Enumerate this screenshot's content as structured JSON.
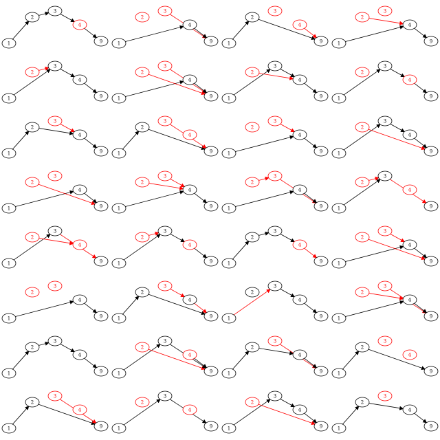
{
  "colors": {
    "normal": "#000000",
    "highlight": "#ff0000",
    "background": "#ffffff"
  },
  "node_labels": {
    "a": "1",
    "b": "2",
    "c": "3",
    "d": "4",
    "e": "9"
  },
  "panels": [
    {
      "red_nodes": [
        "d"
      ],
      "edges": [
        [
          "a",
          "b",
          "n"
        ],
        [
          "b",
          "c",
          "n"
        ],
        [
          "c",
          "d",
          "n"
        ],
        [
          "d",
          "e",
          "n"
        ]
      ]
    },
    {
      "red_nodes": [
        "b",
        "c"
      ],
      "edges": [
        [
          "a",
          "d",
          "n"
        ],
        [
          "c",
          "e",
          "r"
        ],
        [
          "d",
          "e",
          "n"
        ]
      ]
    },
    {
      "red_nodes": [
        "c",
        "d"
      ],
      "edges": [
        [
          "a",
          "b",
          "n"
        ],
        [
          "b",
          "e",
          "n"
        ],
        [
          "d",
          "e",
          "r"
        ]
      ]
    },
    {
      "red_nodes": [
        "b",
        "c"
      ],
      "edges": [
        [
          "a",
          "d",
          "n"
        ],
        [
          "b",
          "d",
          "r"
        ],
        [
          "d",
          "e",
          "n"
        ]
      ]
    },
    {
      "red_nodes": [
        "b"
      ],
      "edges": [
        [
          "a",
          "c",
          "n"
        ],
        [
          "b",
          "c",
          "r"
        ],
        [
          "c",
          "d",
          "n"
        ],
        [
          "d",
          "e",
          "n"
        ]
      ]
    },
    {
      "red_nodes": [
        "b",
        "c"
      ],
      "edges": [
        [
          "a",
          "d",
          "n"
        ],
        [
          "b",
          "e",
          "r"
        ],
        [
          "c",
          "e",
          "r"
        ],
        [
          "d",
          "e",
          "n"
        ]
      ]
    },
    {
      "red_nodes": [
        "b"
      ],
      "edges": [
        [
          "a",
          "c",
          "n"
        ],
        [
          "b",
          "d",
          "r"
        ],
        [
          "c",
          "d",
          "n"
        ],
        [
          "d",
          "e",
          "n"
        ]
      ]
    },
    {
      "red_nodes": [
        "b",
        "d"
      ],
      "edges": [
        [
          "a",
          "c",
          "n"
        ],
        [
          "c",
          "d",
          "n"
        ],
        [
          "d",
          "e",
          "n"
        ]
      ]
    },
    {
      "red_nodes": [
        "c"
      ],
      "edges": [
        [
          "a",
          "b",
          "n"
        ],
        [
          "b",
          "d",
          "n"
        ],
        [
          "c",
          "d",
          "r"
        ],
        [
          "d",
          "e",
          "n"
        ]
      ]
    },
    {
      "red_nodes": [
        "c",
        "d"
      ],
      "edges": [
        [
          "a",
          "b",
          "n"
        ],
        [
          "b",
          "e",
          "n"
        ],
        [
          "c",
          "e",
          "r"
        ]
      ]
    },
    {
      "red_nodes": [
        "b",
        "c"
      ],
      "edges": [
        [
          "a",
          "d",
          "n"
        ],
        [
          "c",
          "d",
          "r"
        ],
        [
          "d",
          "e",
          "n"
        ]
      ]
    },
    {
      "red_nodes": [
        "b"
      ],
      "edges": [
        [
          "a",
          "c",
          "n"
        ],
        [
          "c",
          "d",
          "n"
        ],
        [
          "b",
          "e",
          "r"
        ],
        [
          "d",
          "e",
          "n"
        ]
      ]
    },
    {
      "red_nodes": [
        "b",
        "c"
      ],
      "edges": [
        [
          "a",
          "d",
          "n"
        ],
        [
          "b",
          "e",
          "r"
        ],
        [
          "d",
          "e",
          "n"
        ]
      ]
    },
    {
      "red_nodes": [
        "b",
        "c"
      ],
      "edges": [
        [
          "a",
          "d",
          "n"
        ],
        [
          "b",
          "d",
          "r"
        ],
        [
          "c",
          "d",
          "r"
        ],
        [
          "d",
          "e",
          "n"
        ]
      ]
    },
    {
      "red_nodes": [
        "b",
        "c"
      ],
      "edges": [
        [
          "a",
          "d",
          "n"
        ],
        [
          "b",
          "c",
          "r"
        ],
        [
          "c",
          "e",
          "r"
        ],
        [
          "d",
          "e",
          "n"
        ]
      ]
    },
    {
      "red_nodes": [
        "b",
        "d"
      ],
      "edges": [
        [
          "a",
          "c",
          "n"
        ],
        [
          "b",
          "c",
          "r"
        ],
        [
          "c",
          "e",
          "r"
        ]
      ]
    },
    {
      "red_nodes": [
        "b",
        "d"
      ],
      "edges": [
        [
          "a",
          "c",
          "n"
        ],
        [
          "b",
          "d",
          "r"
        ],
        [
          "c",
          "e",
          "r"
        ]
      ]
    },
    {
      "red_nodes": [
        "b",
        "d"
      ],
      "edges": [
        [
          "a",
          "c",
          "n"
        ],
        [
          "b",
          "c",
          "r"
        ],
        [
          "c",
          "d",
          "n"
        ],
        [
          "d",
          "e",
          "n"
        ]
      ]
    },
    {
      "red_nodes": [
        "d"
      ],
      "edges": [
        [
          "a",
          "b",
          "n"
        ],
        [
          "b",
          "c",
          "n"
        ],
        [
          "c",
          "d",
          "n"
        ],
        [
          "d",
          "e",
          "r"
        ]
      ]
    },
    {
      "red_nodes": [
        "b",
        "c"
      ],
      "edges": [
        [
          "a",
          "d",
          "n"
        ],
        [
          "b",
          "e",
          "r"
        ],
        [
          "c",
          "d",
          "r"
        ],
        [
          "d",
          "e",
          "n"
        ]
      ]
    },
    {
      "red_nodes": [
        "b",
        "c"
      ],
      "edges": [
        [
          "a",
          "d",
          "n"
        ],
        [
          "d",
          "e",
          "n"
        ]
      ]
    },
    {
      "red_nodes": [
        "c"
      ],
      "edges": [
        [
          "a",
          "b",
          "n"
        ],
        [
          "b",
          "e",
          "n"
        ],
        [
          "c",
          "d",
          "r"
        ],
        [
          "d",
          "e",
          "r"
        ]
      ]
    },
    {
      "red_nodes": [],
      "edges": [
        [
          "a",
          "c",
          "r"
        ],
        [
          "c",
          "d",
          "n"
        ],
        [
          "d",
          "e",
          "n"
        ]
      ]
    },
    {
      "red_nodes": [
        "b",
        "c"
      ],
      "edges": [
        [
          "a",
          "d",
          "n"
        ],
        [
          "b",
          "d",
          "r"
        ],
        [
          "c",
          "e",
          "r"
        ],
        [
          "d",
          "e",
          "n"
        ]
      ]
    },
    {
      "red_nodes": [],
      "edges": [
        [
          "a",
          "b",
          "n"
        ],
        [
          "b",
          "c",
          "n"
        ],
        [
          "c",
          "d",
          "n"
        ],
        [
          "d",
          "e",
          "n"
        ]
      ]
    },
    {
      "red_nodes": [
        "b",
        "d"
      ],
      "edges": [
        [
          "a",
          "c",
          "n"
        ],
        [
          "b",
          "e",
          "r"
        ],
        [
          "c",
          "e",
          "n"
        ],
        [
          "d",
          "e",
          "n"
        ]
      ]
    },
    {
      "red_nodes": [
        "c"
      ],
      "edges": [
        [
          "a",
          "b",
          "n"
        ],
        [
          "b",
          "d",
          "n"
        ],
        [
          "c",
          "e",
          "r"
        ],
        [
          "d",
          "e",
          "n"
        ]
      ]
    },
    {
      "red_nodes": [
        "c",
        "d"
      ],
      "edges": [
        [
          "a",
          "b",
          "n"
        ],
        [
          "b",
          "e",
          "n"
        ]
      ]
    },
    {
      "red_nodes": [
        "c",
        "d"
      ],
      "edges": [
        [
          "a",
          "b",
          "n"
        ],
        [
          "b",
          "e",
          "n"
        ],
        [
          "c",
          "e",
          "r"
        ]
      ]
    },
    {
      "red_nodes": [
        "b",
        "d"
      ],
      "edges": [
        [
          "a",
          "c",
          "n"
        ],
        [
          "c",
          "e",
          "n"
        ]
      ]
    },
    {
      "red_nodes": [
        "b"
      ],
      "edges": [
        [
          "a",
          "c",
          "n"
        ],
        [
          "c",
          "d",
          "n"
        ],
        [
          "b",
          "e",
          "r"
        ],
        [
          "d",
          "e",
          "n"
        ]
      ]
    },
    {
      "red_nodes": [
        "c"
      ],
      "edges": [
        [
          "a",
          "b",
          "n"
        ],
        [
          "b",
          "d",
          "n"
        ],
        [
          "d",
          "e",
          "n"
        ]
      ]
    }
  ]
}
